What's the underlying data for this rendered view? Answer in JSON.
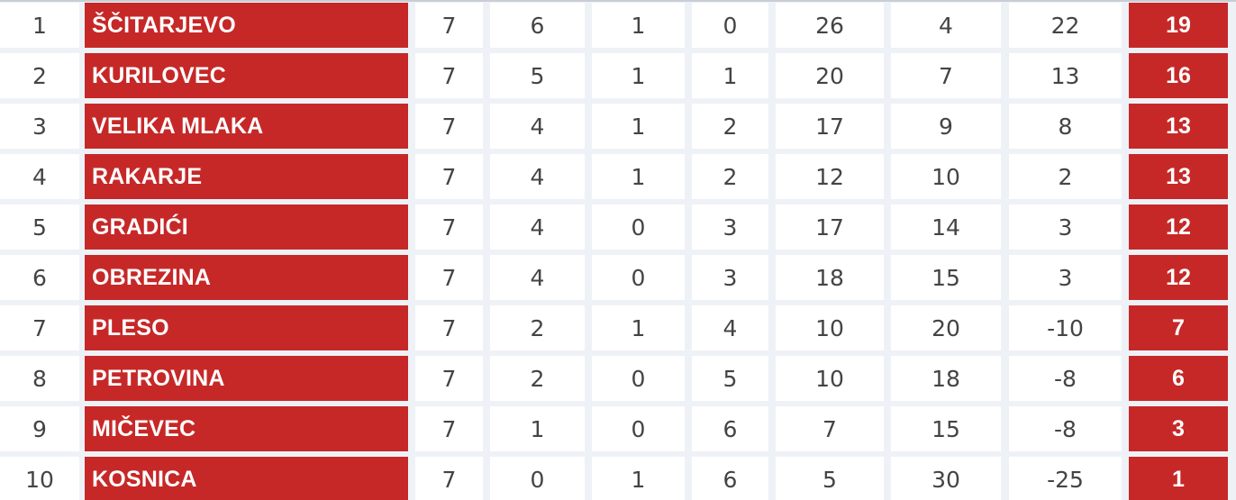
{
  "standings": [
    {
      "pos": "1",
      "team": "ŠČITARJEVO",
      "played": "7",
      "won": "6",
      "drawn": "1",
      "lost": "0",
      "gf": "26",
      "ga": "4",
      "gd": "22",
      "pts": "19"
    },
    {
      "pos": "2",
      "team": "KURILOVEC",
      "played": "7",
      "won": "5",
      "drawn": "1",
      "lost": "1",
      "gf": "20",
      "ga": "7",
      "gd": "13",
      "pts": "16"
    },
    {
      "pos": "3",
      "team": "VELIKA MLAKA",
      "played": "7",
      "won": "4",
      "drawn": "1",
      "lost": "2",
      "gf": "17",
      "ga": "9",
      "gd": "8",
      "pts": "13"
    },
    {
      "pos": "4",
      "team": "RAKARJE",
      "played": "7",
      "won": "4",
      "drawn": "1",
      "lost": "2",
      "gf": "12",
      "ga": "10",
      "gd": "2",
      "pts": "13"
    },
    {
      "pos": "5",
      "team": "GRADIĆI",
      "played": "7",
      "won": "4",
      "drawn": "0",
      "lost": "3",
      "gf": "17",
      "ga": "14",
      "gd": "3",
      "pts": "12"
    },
    {
      "pos": "6",
      "team": "OBREZINA",
      "played": "7",
      "won": "4",
      "drawn": "0",
      "lost": "3",
      "gf": "18",
      "ga": "15",
      "gd": "3",
      "pts": "12"
    },
    {
      "pos": "7",
      "team": "PLESO",
      "played": "7",
      "won": "2",
      "drawn": "1",
      "lost": "4",
      "gf": "10",
      "ga": "20",
      "gd": "-10",
      "pts": "7"
    },
    {
      "pos": "8",
      "team": "PETROVINA",
      "played": "7",
      "won": "2",
      "drawn": "0",
      "lost": "5",
      "gf": "10",
      "ga": "18",
      "gd": "-8",
      "pts": "6"
    },
    {
      "pos": "9",
      "team": "MIČEVEC",
      "played": "7",
      "won": "1",
      "drawn": "0",
      "lost": "6",
      "gf": "7",
      "ga": "15",
      "gd": "-8",
      "pts": "3"
    },
    {
      "pos": "10",
      "team": "KOSNICA",
      "played": "7",
      "won": "0",
      "drawn": "1",
      "lost": "6",
      "gf": "5",
      "ga": "30",
      "gd": "-25",
      "pts": "1"
    }
  ],
  "colors": {
    "accent": "#c62828",
    "cell": "#ffffff",
    "background": "#eef2f7",
    "text": "#444444"
  }
}
